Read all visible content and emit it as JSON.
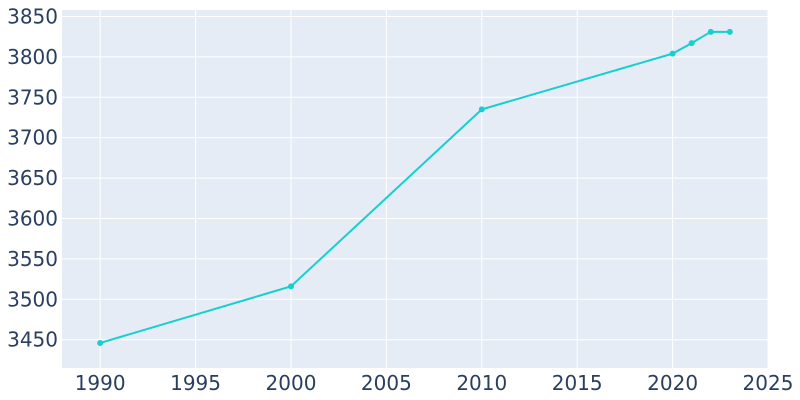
{
  "chart_data": {
    "type": "line",
    "title": "",
    "xlabel": "",
    "ylabel": "",
    "xlim": [
      1988,
      2025
    ],
    "ylim": [
      3415,
      3858
    ],
    "x_ticks": [
      1990,
      1995,
      2000,
      2005,
      2010,
      2015,
      2020,
      2025
    ],
    "y_ticks": [
      3450,
      3500,
      3550,
      3600,
      3650,
      3700,
      3750,
      3800,
      3850
    ],
    "grid": true,
    "legend": "none",
    "colors": {
      "line": "#17cfcf",
      "plot_bg": "#e5ecf6",
      "grid": "#ffffff",
      "tick_text": "#2a3f5f"
    },
    "series": [
      {
        "x": [
          1990,
          2000,
          2010,
          2020,
          2021,
          2022,
          2023
        ],
        "y": [
          3446,
          3516,
          3735,
          3804,
          3817,
          3831,
          3831
        ]
      }
    ]
  }
}
